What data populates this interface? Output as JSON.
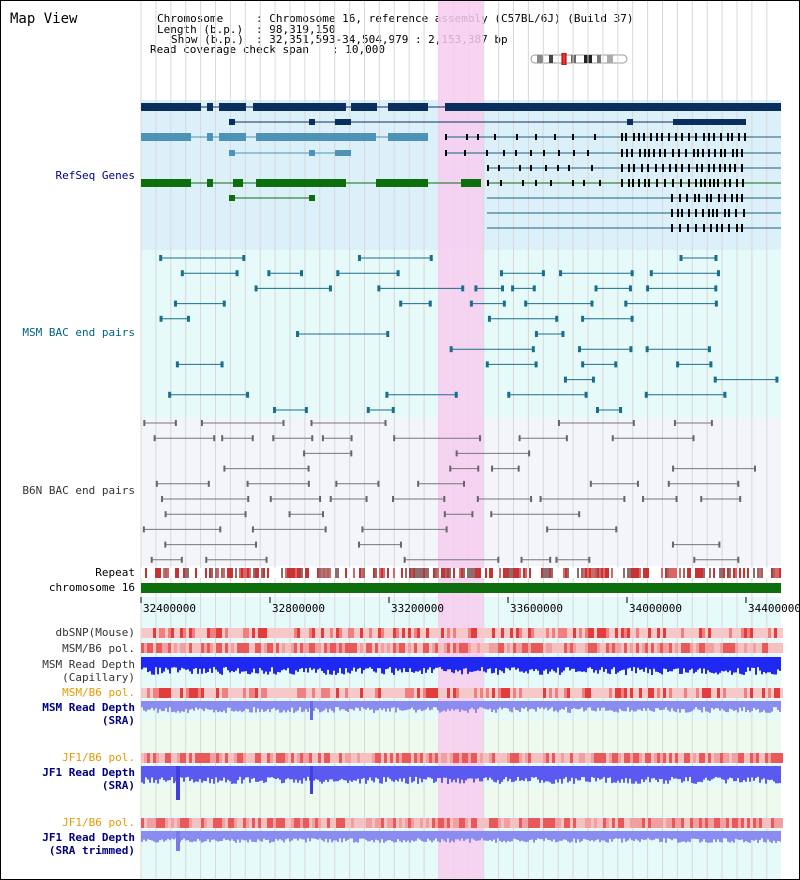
{
  "title": "Map View",
  "header": {
    "chromosome_label": "Chromosome",
    "chromosome_value": ": Chromosome 16, reference assembly (C57BL/6J) (Build 37)",
    "length_label": "Length (b.p.)",
    "length_value": ": 98,319,150",
    "show_label": "Show (b.p.)",
    "show_value": ": 32,351,593-34,504,979 : 2,153,387 bp",
    "span_label": "Read coverage check span",
    "span_value": ": 10,000"
  },
  "tracks": {
    "refseq": "RefSeq Genes",
    "msm_bac": "MSM BAC end pairs",
    "b6n_bac": "B6N BAC end pairs",
    "repeat": "Repeat",
    "chromosome": "chromosome 16",
    "dbsnp": "dbSNP(Mouse)",
    "msm_pol1": "MSM/B6 pol.",
    "msm_depth_cap_1": "MSM Read Depth",
    "msm_depth_cap_2": "(Capillary)",
    "msm_pol2": "MSM/B6 pol.",
    "msm_depth_sra_1": "MSM Read Depth",
    "msm_depth_sra_2": "(SRA)",
    "jf1_pol1": "JF1/B6 pol.",
    "jf1_depth_sra_1": "JF1 Read Depth",
    "jf1_depth_sra_2": "(SRA)",
    "jf1_pol2": "JF1/B6 pol.",
    "jf1_depth_trim_1": "JF1 Read Depth",
    "jf1_depth_trim_2": "(SRA trimmed)"
  },
  "axis": {
    "ticks": [
      "32400000",
      "32800000",
      "33200000",
      "33600000",
      "34000000",
      "34400000"
    ]
  },
  "colors": {
    "refseq_bg": "#dcf0fa",
    "bac_bg": "#e6fafa",
    "b6n_bg": "#f4f5fa",
    "highlight": "#f7cdf0",
    "gene_dark": "#0b2f5c",
    "gene_mid": "#4d93b5",
    "gene_green": "#0d6e0d",
    "msm_line": "#1a6e8c",
    "b6n_line": "#777777",
    "chrom_bar": "#0d6e0d",
    "depth_blue": "#1e28f0",
    "depth_light": "#8c8cf0",
    "label_blue": "#00007f",
    "label_teal": "#00627f",
    "label_orange": "#e69a00"
  }
}
